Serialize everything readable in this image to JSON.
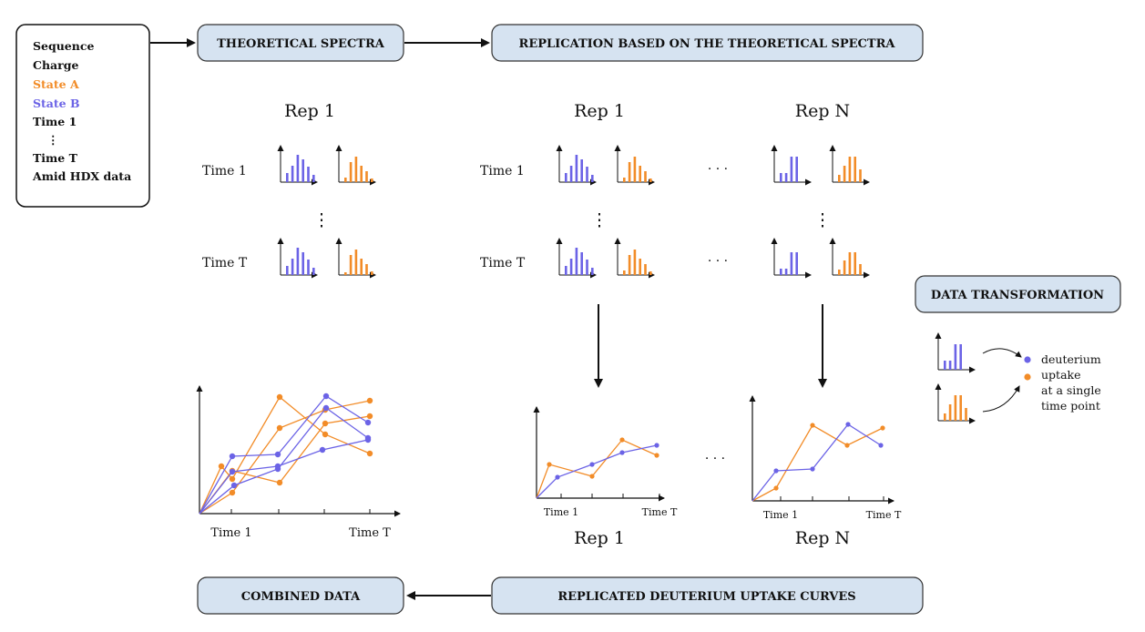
{
  "colors": {
    "state_a": "#F28C28",
    "state_b": "#6B63E6",
    "box_fill": "#D6E3F1",
    "box_stroke": "#333333"
  },
  "input_box": {
    "items": [
      {
        "text": "Sequence",
        "color": "#111111"
      },
      {
        "text": "Charge",
        "color": "#111111"
      },
      {
        "text": "State A",
        "color": "#F28C28"
      },
      {
        "text": "State B",
        "color": "#6B63E6"
      },
      {
        "text": "Time 1",
        "color": "#111111"
      },
      {
        "text": "⋮",
        "color": "#111111"
      },
      {
        "text": "Time T",
        "color": "#111111"
      },
      {
        "text": "Amid HDX data",
        "color": "#111111"
      }
    ]
  },
  "steps": {
    "theoretical": "THEORETICAL SPECTRA",
    "replication": "REPLICATION  BASED ON THE THEORETICAL SPECTRA",
    "transformation": "DATA TRANSFORMATION",
    "combined": "COMBINED DATA",
    "replicated": "REPLICATED DEUTERIUM UPTAKE CURVES"
  },
  "spectra_panels": {
    "theoretical_title": "Rep 1",
    "rep1_title": "Rep 1",
    "repn_title": "Rep N",
    "time_first": "Time 1",
    "time_last": "Time T",
    "ellipsis_h": "· · ·",
    "ellipsis_v": "⋮"
  },
  "transformation": {
    "legend": [
      "deuterium",
      "uptake",
      "at a single",
      "time point"
    ]
  },
  "bottom_plots": {
    "combined_x_first": "Time 1",
    "combined_x_last": "Time T",
    "rep1_x_first": "Time 1",
    "rep1_x_last": "Time T",
    "repn_x_first": "Time 1",
    "repn_x_last": "Time T",
    "rep1_caption": "Rep 1",
    "repn_caption": "Rep N",
    "ellipsis_h": "· · ·"
  }
}
